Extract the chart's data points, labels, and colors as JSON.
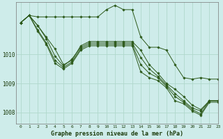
{
  "title": "Graphe pression niveau de la mer (hPa)",
  "background_color": "#ceecea",
  "grid_color": "#b0d8cc",
  "line_color": "#2d5a1b",
  "marker_color": "#2d5a1b",
  "xlim": [
    -0.5,
    23
  ],
  "ylim": [
    1007.6,
    1011.8
  ],
  "yticks": [
    1008,
    1009,
    1010
  ],
  "xticks": [
    0,
    1,
    2,
    3,
    4,
    5,
    6,
    7,
    8,
    9,
    10,
    11,
    12,
    13,
    14,
    15,
    16,
    17,
    18,
    19,
    20,
    21,
    22,
    23
  ],
  "series": [
    [
      1011.1,
      1011.35,
      1011.3,
      1011.3,
      1011.3,
      1011.3,
      1011.3,
      1011.3,
      1011.3,
      1011.3,
      1011.55,
      1011.7,
      1011.55,
      1011.55,
      1010.6,
      1010.25,
      1010.25,
      1010.15,
      1009.65,
      1009.2,
      1009.15,
      1009.2,
      1009.15,
      1009.15
    ],
    [
      1011.1,
      1011.35,
      1011.0,
      1010.6,
      1010.2,
      1009.65,
      1009.8,
      1010.3,
      1010.45,
      1010.45,
      1010.45,
      1010.45,
      1010.45,
      1010.45,
      1010.15,
      1009.65,
      1009.35,
      1009.0,
      1008.8,
      1008.55,
      1008.25,
      1008.1,
      1008.4,
      1008.4
    ],
    [
      1011.1,
      1011.35,
      1011.0,
      1010.55,
      1009.95,
      1009.6,
      1009.85,
      1010.25,
      1010.4,
      1010.4,
      1010.4,
      1010.4,
      1010.4,
      1010.4,
      1009.9,
      1009.5,
      1009.25,
      1008.95,
      1008.65,
      1008.4,
      1008.15,
      1008.05,
      1008.4,
      1008.4
    ],
    [
      1011.1,
      1011.35,
      1010.85,
      1010.4,
      1009.8,
      1009.55,
      1009.75,
      1010.2,
      1010.35,
      1010.35,
      1010.35,
      1010.35,
      1010.35,
      1010.35,
      1009.65,
      1009.35,
      1009.2,
      1008.9,
      1008.55,
      1008.35,
      1008.1,
      1007.95,
      1008.4,
      1008.4
    ],
    [
      1011.1,
      1011.35,
      1010.8,
      1010.35,
      1009.7,
      1009.5,
      1009.7,
      1010.15,
      1010.3,
      1010.3,
      1010.3,
      1010.3,
      1010.3,
      1010.3,
      1009.4,
      1009.2,
      1009.1,
      1008.85,
      1008.4,
      1008.3,
      1008.05,
      1007.9,
      1008.35,
      1008.35
    ]
  ]
}
